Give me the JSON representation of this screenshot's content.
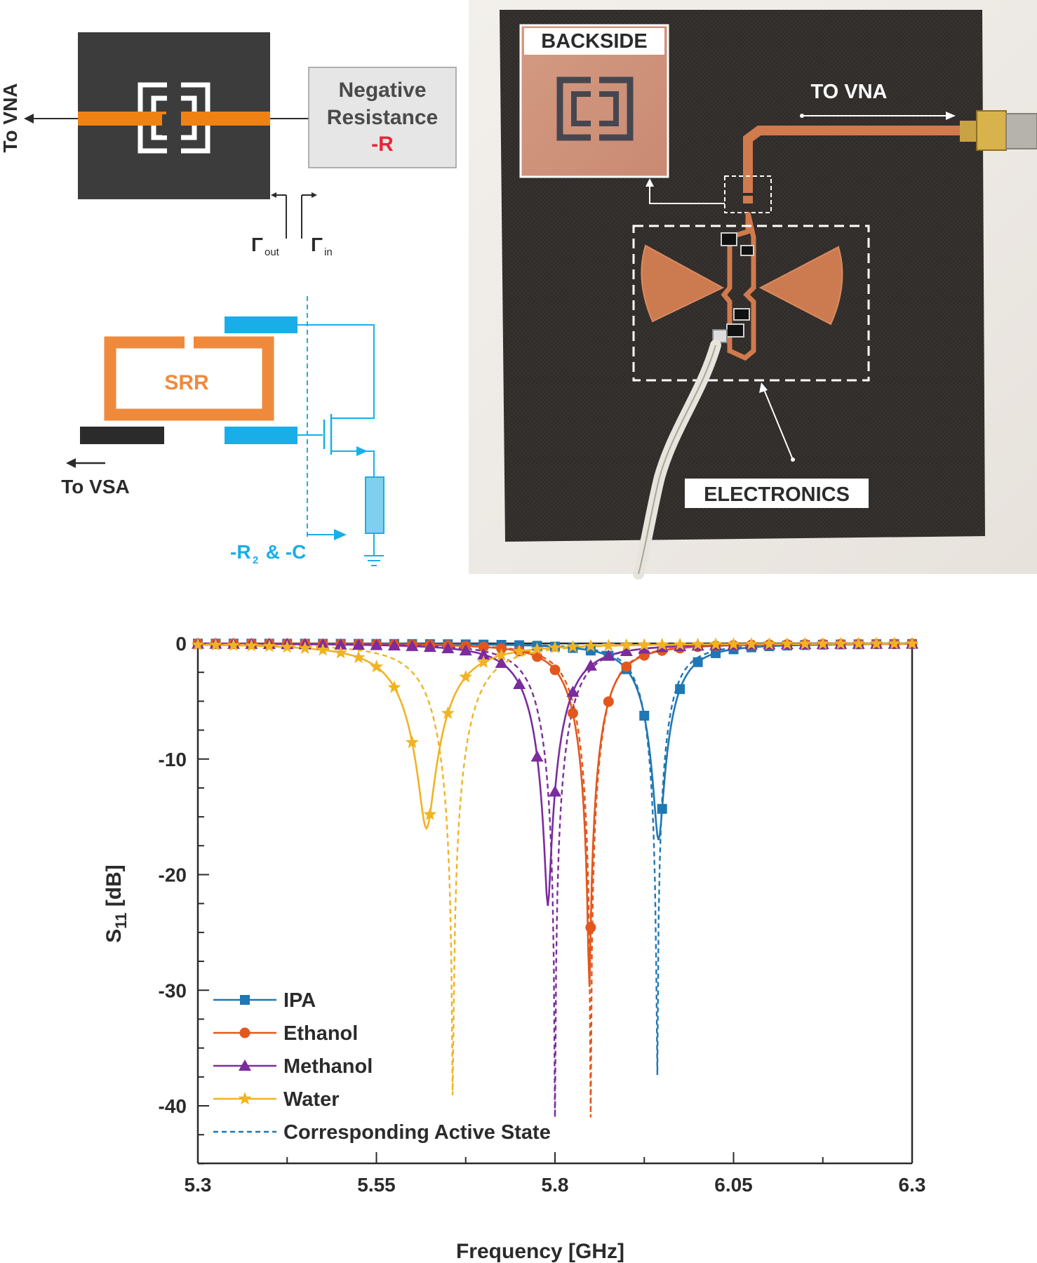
{
  "panel_a": {
    "to_vna": "To VNA",
    "neg_res_line1": "Negative",
    "neg_res_line2": "Resistance",
    "neg_res_sym": "-R",
    "gamma_out": "Γ",
    "gamma_out_sub": "out",
    "gamma_in": "Γ",
    "gamma_in_sub": "in",
    "colors": {
      "substrate": "#3c3c3c",
      "feedline": "#f08214",
      "box": "#e6e6e6",
      "accent_red": "#e8263a"
    }
  },
  "panel_b": {
    "srr_label": "SRR",
    "to_vsa": "To VSA",
    "neg_label_a": "-R",
    "neg_label_sub": "2",
    "neg_label_b": " & -C",
    "colors": {
      "srr": "#ef8a3c",
      "circuit": "#19aee8",
      "feed": "#2b2b2b"
    }
  },
  "panel_c": {
    "backside": "BACKSIDE",
    "to_vna": "TO VNA",
    "electronics": "ELECTRONICS",
    "colors": {
      "board": "#2e2a28",
      "copper": "#d07a4d",
      "wall": "#efebe6"
    }
  },
  "chart_data": {
    "type": "line",
    "xlabel": "Frequency [GHz]",
    "ylabel": "S",
    "ylabel_sub": "11",
    "ylabel_unit": " [dB]",
    "xlim": [
      5.3,
      6.3
    ],
    "ylim": [
      -45,
      0
    ],
    "x_ticks": [
      5.3,
      5.55,
      5.8,
      6.05,
      6.3
    ],
    "x_tick_labels": [
      "5.3",
      "5.55",
      "5.8",
      "6.05",
      "6.3"
    ],
    "y_ticks": [
      0,
      -10,
      -20,
      -30,
      -40
    ],
    "y_tick_labels": [
      "0",
      "-10",
      "-20",
      "-30",
      "-40"
    ],
    "grid": false,
    "legend_position": "bottom-left",
    "series": [
      {
        "name": "IPA",
        "color": "#1f77b4",
        "marker": "square",
        "f0": 5.945,
        "min": -17.0,
        "bw": 0.075,
        "active": {
          "f0": 5.943,
          "min": -41.0,
          "bw": 0.065
        }
      },
      {
        "name": "Ethanol",
        "color": "#e2571e",
        "marker": "circle",
        "f0": 5.848,
        "min": -30.0,
        "bw": 0.08,
        "active": {
          "f0": 5.85,
          "min": -41.0,
          "bw": 0.075
        }
      },
      {
        "name": "Methanol",
        "color": "#7b2c9e",
        "marker": "triangle",
        "f0": 5.79,
        "min": -22.7,
        "bw": 0.09,
        "active": {
          "f0": 5.8,
          "min": -41.0,
          "bw": 0.082
        }
      },
      {
        "name": "Water",
        "color": "#f0b323",
        "marker": "star",
        "f0": 5.62,
        "min": -16.0,
        "bw": 0.11,
        "active": {
          "f0": 5.657,
          "min": -41.0,
          "bw": 0.1
        }
      }
    ],
    "active_legend": "Corresponding Active State",
    "active_legend_color": "#1f77b4"
  }
}
